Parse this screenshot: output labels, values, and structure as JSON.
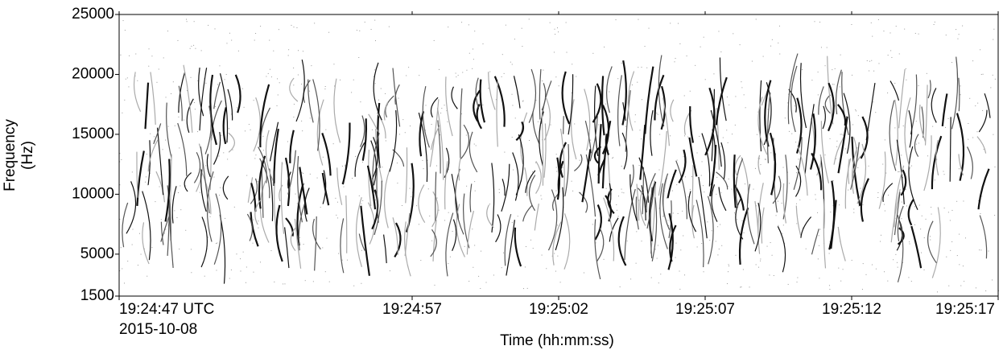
{
  "chart_data": {
    "type": "spectrogram",
    "ylabel": "Frequency\n(Hz)",
    "xlabel": "Time (hh:mm:ss)",
    "x_date_label": "2015-10-08",
    "ylim": [
      1500,
      25000
    ],
    "yticks": [
      1500,
      5000,
      10000,
      15000,
      20000,
      25000
    ],
    "xlim": [
      "19:24:47",
      "19:25:17"
    ],
    "xticks": [
      {
        "value": "19:24:47",
        "label": "19:24:47 UTC"
      },
      "19:24:57",
      "19:25:02",
      "19:25:07",
      "19:25:12",
      "19:25:17"
    ]
  }
}
